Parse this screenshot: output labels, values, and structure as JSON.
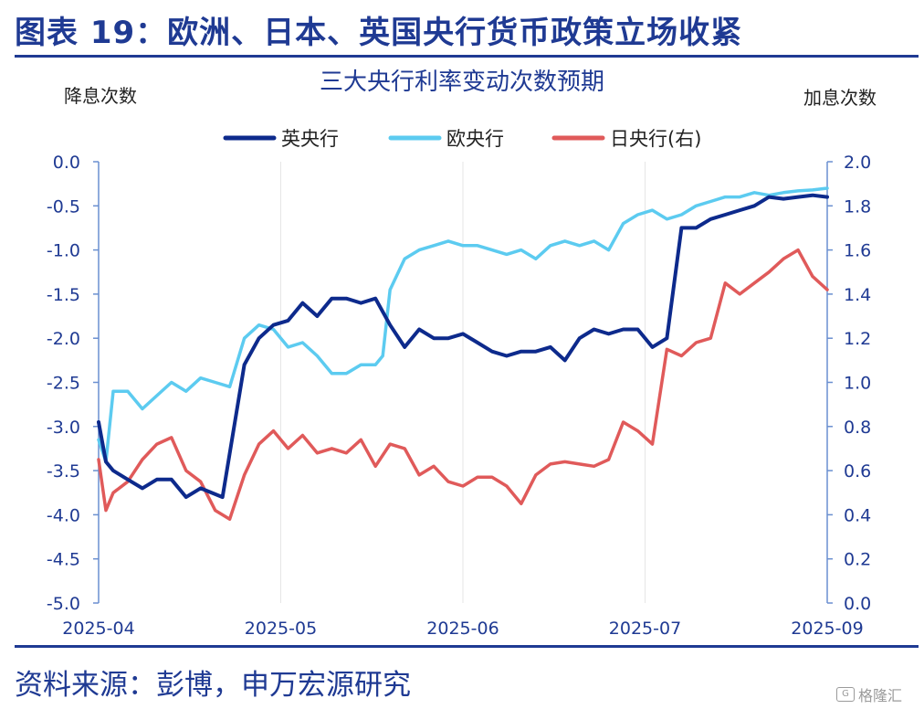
{
  "title": "图表 19：欧洲、日本、英国央行货币政策立场收紧",
  "source": "资料来源：彭博，申万宏源研究",
  "watermark": "格隆汇",
  "colors": {
    "brand": "#1f3a93",
    "boe": "#0d2a8c",
    "ecb": "#5ccbf0",
    "boj": "#e05a5a",
    "axis": "#6a8fd0"
  },
  "chart_data": {
    "type": "line",
    "title": "三大央行利率变动次数预期",
    "ylabel_left": "降息次数",
    "ylabel_right": "加息次数",
    "y_left_ticks": [
      "0.0",
      "-0.5",
      "-1.0",
      "-1.5",
      "-2.0",
      "-2.5",
      "-3.0",
      "-3.5",
      "-4.0",
      "-4.5",
      "-5.0"
    ],
    "y_right_ticks": [
      "2.0",
      "1.8",
      "1.6",
      "1.4",
      "1.2",
      "1.0",
      "0.8",
      "0.6",
      "0.4",
      "0.2",
      "0.0"
    ],
    "x_ticks": [
      "2025-04",
      "2025-05",
      "2025-06",
      "2025-07",
      "2025-09"
    ],
    "ylim_left": [
      -5.0,
      0.0
    ],
    "ylim_right": [
      0.0,
      2.0
    ],
    "xlim": [
      0,
      100
    ],
    "legend_position": "top-center",
    "series": [
      {
        "name": "英央行",
        "axis": "left",
        "color": "#0d2a8c",
        "x": [
          0,
          1,
          2,
          4,
          6,
          8,
          10,
          12,
          14,
          17,
          20,
          22,
          24,
          26,
          28,
          30,
          32,
          34,
          36,
          38,
          40,
          42,
          44,
          46,
          48,
          50,
          52,
          54,
          56,
          58,
          60,
          62,
          64,
          66,
          68,
          70,
          72,
          74,
          76,
          78,
          80,
          82,
          84,
          86,
          88,
          90,
          92,
          94,
          96,
          98,
          100
        ],
        "y": [
          -2.95,
          -3.4,
          -3.5,
          -3.6,
          -3.7,
          -3.6,
          -3.6,
          -3.8,
          -3.7,
          -3.8,
          -2.3,
          -2.0,
          -1.85,
          -1.8,
          -1.6,
          -1.75,
          -1.55,
          -1.55,
          -1.6,
          -1.55,
          -1.85,
          -2.1,
          -1.9,
          -2.0,
          -2.0,
          -1.95,
          -2.05,
          -2.15,
          -2.2,
          -2.15,
          -2.15,
          -2.1,
          -2.25,
          -2.0,
          -1.9,
          -1.95,
          -1.9,
          -1.9,
          -2.1,
          -2.0,
          -0.75,
          -0.75,
          -0.65,
          -0.6,
          -0.55,
          -0.5,
          -0.4,
          -0.42,
          -0.4,
          -0.38,
          -0.4
        ]
      },
      {
        "name": "欧央行",
        "axis": "left",
        "color": "#5ccbf0",
        "x": [
          0,
          1,
          2,
          4,
          6,
          8,
          10,
          12,
          14,
          16,
          18,
          20,
          22,
          24,
          26,
          28,
          30,
          32,
          34,
          36,
          38,
          39,
          40,
          42,
          44,
          46,
          48,
          50,
          52,
          54,
          56,
          58,
          60,
          62,
          64,
          66,
          68,
          70,
          72,
          74,
          76,
          78,
          80,
          82,
          84,
          86,
          88,
          90,
          92,
          94,
          96,
          98,
          100
        ],
        "y": [
          -3.15,
          -3.4,
          -2.6,
          -2.6,
          -2.8,
          -2.65,
          -2.5,
          -2.6,
          -2.45,
          -2.5,
          -2.55,
          -2.0,
          -1.85,
          -1.9,
          -2.1,
          -2.05,
          -2.2,
          -2.4,
          -2.4,
          -2.3,
          -2.3,
          -2.2,
          -1.45,
          -1.1,
          -1.0,
          -0.95,
          -0.9,
          -0.95,
          -0.95,
          -1.0,
          -1.05,
          -1.0,
          -1.1,
          -0.95,
          -0.9,
          -0.95,
          -0.9,
          -1.0,
          -0.7,
          -0.6,
          -0.55,
          -0.65,
          -0.6,
          -0.5,
          -0.45,
          -0.4,
          -0.4,
          -0.35,
          -0.38,
          -0.35,
          -0.33,
          -0.32,
          -0.3
        ]
      },
      {
        "name": "日央行(右)",
        "axis": "right",
        "color": "#e05a5a",
        "x": [
          0,
          1,
          2,
          4,
          6,
          8,
          10,
          12,
          14,
          16,
          18,
          20,
          22,
          24,
          26,
          28,
          30,
          32,
          34,
          36,
          38,
          40,
          42,
          44,
          46,
          48,
          50,
          52,
          54,
          56,
          58,
          60,
          62,
          64,
          66,
          68,
          70,
          72,
          74,
          76,
          78,
          80,
          82,
          84,
          86,
          88,
          90,
          92,
          94,
          96,
          98,
          100
        ],
        "y": [
          0.65,
          0.42,
          0.5,
          0.55,
          0.65,
          0.72,
          0.75,
          0.6,
          0.55,
          0.42,
          0.38,
          0.58,
          0.72,
          0.78,
          0.7,
          0.76,
          0.68,
          0.7,
          0.68,
          0.74,
          0.62,
          0.72,
          0.7,
          0.58,
          0.62,
          0.55,
          0.53,
          0.57,
          0.57,
          0.53,
          0.45,
          0.58,
          0.63,
          0.64,
          0.63,
          0.62,
          0.65,
          0.82,
          0.78,
          0.72,
          1.15,
          1.12,
          1.18,
          1.2,
          1.45,
          1.4,
          1.45,
          1.5,
          1.56,
          1.6,
          1.48,
          1.42
        ]
      }
    ]
  }
}
